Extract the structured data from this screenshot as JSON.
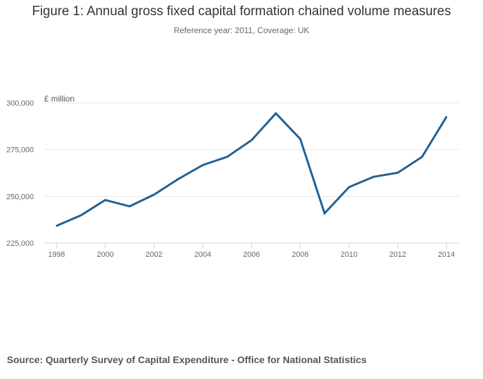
{
  "chart_data": {
    "type": "line",
    "title": "Figure 1: Annual gross fixed capital formation chained volume measures",
    "subtitle": "Reference year: 2011, Coverage: UK",
    "xlabel": "",
    "ylabel": "£ million",
    "x": [
      1998,
      1999,
      2000,
      2001,
      2002,
      2003,
      2004,
      2005,
      2006,
      2007,
      2008,
      2009,
      2010,
      2011,
      2012,
      2013,
      2014
    ],
    "series": [
      {
        "name": "Gross fixed capital formation (CVM)",
        "color": "#206095",
        "values": [
          234200,
          239800,
          248000,
          244600,
          250900,
          259300,
          266700,
          271100,
          280000,
          294400,
          280700,
          240900,
          254900,
          260400,
          262600,
          271100,
          292500
        ]
      }
    ],
    "xticks": [
      "1998",
      "2000",
      "2002",
      "2004",
      "2006",
      "2008",
      "2010",
      "2012",
      "2014"
    ],
    "xtick_values": [
      1998,
      2000,
      2002,
      2004,
      2006,
      2008,
      2010,
      2012,
      2014
    ],
    "yticks": [
      "225,000",
      "250,000",
      "275,000",
      "300,000"
    ],
    "ytick_values": [
      225000,
      250000,
      275000,
      300000
    ],
    "ylim": [
      225000,
      300000
    ],
    "xlim": [
      1998,
      2014
    ],
    "grid": "horizontal",
    "legend": "none"
  },
  "source": "Source: Quarterly Survey of Capital Expenditure - Office for National Statistics"
}
